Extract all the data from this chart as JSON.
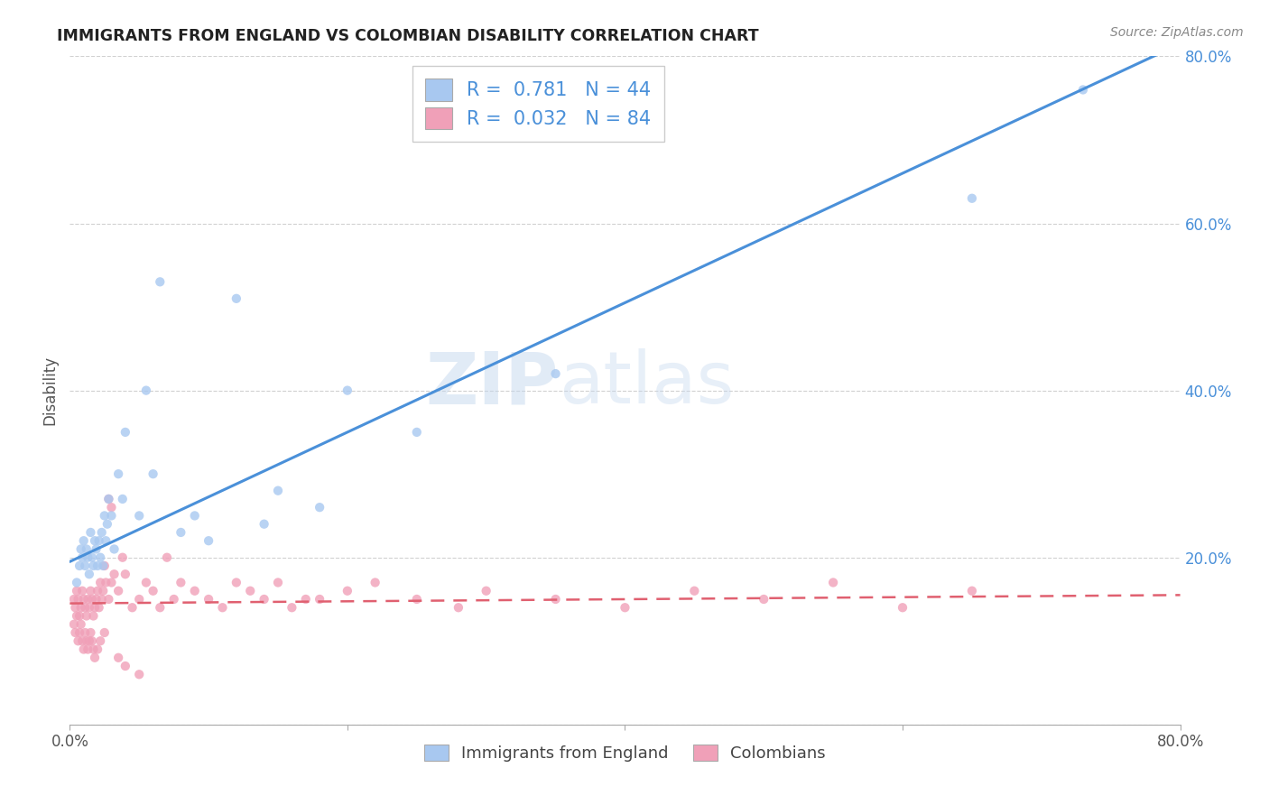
{
  "title": "IMMIGRANTS FROM ENGLAND VS COLOMBIAN DISABILITY CORRELATION CHART",
  "source": "Source: ZipAtlas.com",
  "ylabel": "Disability",
  "xlim": [
    0.0,
    0.8
  ],
  "ylim": [
    0.0,
    0.8
  ],
  "xticks": [
    0.0,
    0.2,
    0.4,
    0.6,
    0.8
  ],
  "yticks": [
    0.0,
    0.2,
    0.4,
    0.6,
    0.8
  ],
  "xticklabels": [
    "0.0%",
    "",
    "",
    "",
    "80.0%"
  ],
  "yticklabels_right": [
    "",
    "20.0%",
    "40.0%",
    "60.0%",
    "80.0%"
  ],
  "color_blue": "#a8c8f0",
  "color_pink": "#f0a0b8",
  "line_blue": "#4a90d9",
  "line_pink": "#e06070",
  "legend_R_blue": "0.781",
  "legend_N_blue": "44",
  "legend_R_pink": "0.032",
  "legend_N_pink": "84",
  "legend_label_blue": "Immigrants from England",
  "legend_label_pink": "Colombians",
  "watermark_zip": "ZIP",
  "watermark_atlas": "atlas",
  "blue_line_x0": 0.0,
  "blue_line_y0": 0.195,
  "blue_line_x1": 0.8,
  "blue_line_y1": 0.815,
  "pink_line_x0": 0.0,
  "pink_line_y0": 0.145,
  "pink_line_x1": 0.8,
  "pink_line_y1": 0.155,
  "england_x": [
    0.005,
    0.007,
    0.008,
    0.009,
    0.01,
    0.011,
    0.012,
    0.013,
    0.014,
    0.015,
    0.016,
    0.017,
    0.018,
    0.019,
    0.02,
    0.021,
    0.022,
    0.023,
    0.024,
    0.025,
    0.026,
    0.027,
    0.028,
    0.03,
    0.032,
    0.035,
    0.038,
    0.04,
    0.05,
    0.055,
    0.06,
    0.065,
    0.08,
    0.09,
    0.1,
    0.12,
    0.14,
    0.15,
    0.18,
    0.2,
    0.25,
    0.35,
    0.65,
    0.73
  ],
  "england_y": [
    0.17,
    0.19,
    0.21,
    0.2,
    0.22,
    0.19,
    0.21,
    0.2,
    0.18,
    0.23,
    0.2,
    0.19,
    0.22,
    0.21,
    0.19,
    0.22,
    0.2,
    0.23,
    0.19,
    0.25,
    0.22,
    0.24,
    0.27,
    0.25,
    0.21,
    0.3,
    0.27,
    0.35,
    0.25,
    0.4,
    0.3,
    0.53,
    0.23,
    0.25,
    0.22,
    0.51,
    0.24,
    0.28,
    0.26,
    0.4,
    0.35,
    0.42,
    0.63,
    0.76
  ],
  "colombia_x": [
    0.003,
    0.004,
    0.005,
    0.006,
    0.007,
    0.008,
    0.009,
    0.01,
    0.011,
    0.012,
    0.013,
    0.014,
    0.015,
    0.016,
    0.017,
    0.018,
    0.019,
    0.02,
    0.021,
    0.022,
    0.023,
    0.024,
    0.025,
    0.026,
    0.028,
    0.03,
    0.032,
    0.035,
    0.038,
    0.04,
    0.045,
    0.05,
    0.055,
    0.06,
    0.065,
    0.07,
    0.075,
    0.08,
    0.09,
    0.1,
    0.11,
    0.12,
    0.13,
    0.14,
    0.15,
    0.16,
    0.17,
    0.18,
    0.2,
    0.22,
    0.25,
    0.28,
    0.3,
    0.35,
    0.4,
    0.45,
    0.5,
    0.55,
    0.6,
    0.65,
    0.003,
    0.004,
    0.005,
    0.006,
    0.007,
    0.008,
    0.009,
    0.01,
    0.011,
    0.012,
    0.013,
    0.014,
    0.015,
    0.016,
    0.017,
    0.018,
    0.02,
    0.022,
    0.025,
    0.028,
    0.03,
    0.035,
    0.04,
    0.05
  ],
  "colombia_y": [
    0.15,
    0.14,
    0.16,
    0.15,
    0.13,
    0.14,
    0.16,
    0.15,
    0.14,
    0.13,
    0.15,
    0.14,
    0.16,
    0.15,
    0.13,
    0.14,
    0.15,
    0.16,
    0.14,
    0.17,
    0.15,
    0.16,
    0.19,
    0.17,
    0.15,
    0.17,
    0.18,
    0.16,
    0.2,
    0.18,
    0.14,
    0.15,
    0.17,
    0.16,
    0.14,
    0.2,
    0.15,
    0.17,
    0.16,
    0.15,
    0.14,
    0.17,
    0.16,
    0.15,
    0.17,
    0.14,
    0.15,
    0.15,
    0.16,
    0.17,
    0.15,
    0.14,
    0.16,
    0.15,
    0.14,
    0.16,
    0.15,
    0.17,
    0.14,
    0.16,
    0.12,
    0.11,
    0.13,
    0.1,
    0.11,
    0.12,
    0.1,
    0.09,
    0.11,
    0.1,
    0.09,
    0.1,
    0.11,
    0.1,
    0.09,
    0.08,
    0.09,
    0.1,
    0.11,
    0.27,
    0.26,
    0.08,
    0.07,
    0.06
  ]
}
